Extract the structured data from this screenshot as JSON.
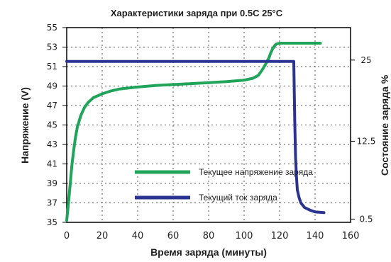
{
  "chart_data": {
    "type": "line",
    "title": "Характеристики заряда при 0.5C  25°C",
    "xlabel": "Время заряда (минуты)",
    "ylabel_left": "Напряжение (V)",
    "ylabel_right": "Состояние заряда %",
    "x_ticks": [
      "0",
      "20",
      "40",
      "60",
      "80",
      "100",
      "120",
      "140",
      "160"
    ],
    "y_left_ticks": [
      "35",
      "37",
      "39",
      "41",
      "43",
      "45",
      "47",
      "49",
      "51",
      "53",
      "55"
    ],
    "y_right_ticks": [
      "25",
      "12.5",
      "0.5"
    ],
    "xlim": [
      0,
      160
    ],
    "ylim_left": [
      35,
      55
    ],
    "ylim_right": [
      0,
      30
    ],
    "grid": true,
    "legend_position": "bottom-center",
    "series": [
      {
        "name": "Текущее напряжение заряда",
        "axis": "left",
        "color": "#1fa45a",
        "x": [
          0,
          1,
          2,
          3,
          4,
          5,
          6,
          8,
          10,
          12,
          15,
          20,
          25,
          30,
          40,
          50,
          60,
          70,
          80,
          90,
          100,
          105,
          108,
          110,
          112,
          114,
          115,
          116,
          117,
          118,
          120,
          125,
          130,
          140,
          143
        ],
        "y": [
          35.2,
          37,
          39,
          41,
          42.5,
          43.8,
          44.8,
          46,
          46.8,
          47.3,
          47.8,
          48.2,
          48.5,
          48.7,
          48.9,
          49.05,
          49.15,
          49.25,
          49.35,
          49.45,
          49.6,
          49.8,
          50.1,
          50.6,
          51.2,
          51.9,
          52.4,
          52.8,
          53.1,
          53.3,
          53.4,
          53.4,
          53.4,
          53.4,
          53.4
        ]
      },
      {
        "name": "Текущий ток заряда",
        "axis": "right",
        "color": "#2b3391",
        "x": [
          0,
          20,
          40,
          60,
          80,
          100,
          120,
          128,
          128.5,
          129,
          129.5,
          130,
          131,
          132,
          134,
          137,
          140,
          145
        ],
        "y": [
          24.8,
          24.8,
          24.8,
          24.8,
          24.8,
          24.8,
          24.8,
          24.8,
          16,
          10,
          7,
          5,
          3.8,
          3,
          2.3,
          1.9,
          1.6,
          1.5
        ]
      }
    ]
  }
}
